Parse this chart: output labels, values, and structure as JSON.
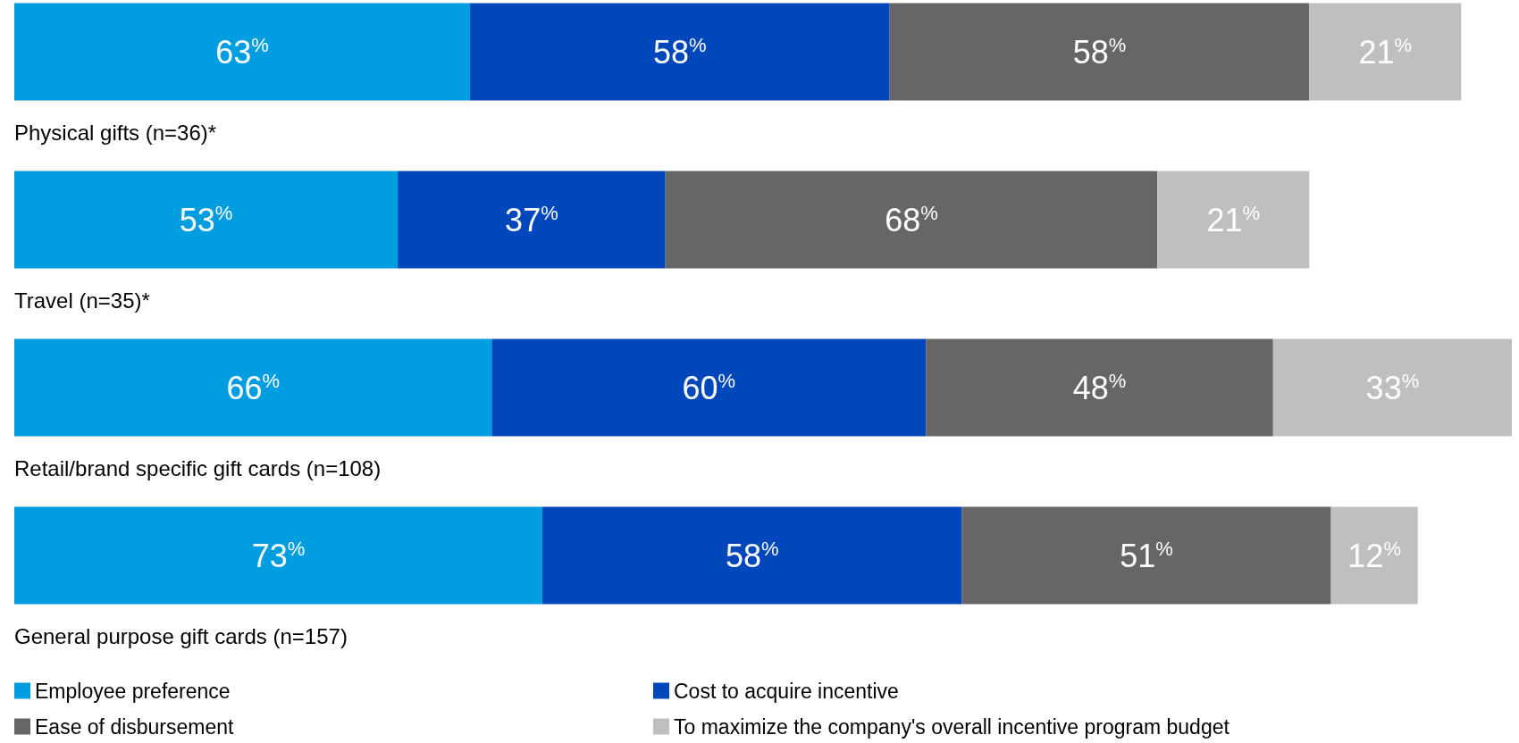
{
  "chart_data": {
    "type": "bar",
    "orientation": "horizontal",
    "stacked": true,
    "categories": [
      "Physical gifts (n=36)*",
      "Travel (n=35)*",
      "Retail/brand specific gift cards (n=108)",
      "General purpose gift cards (n=157)"
    ],
    "series": [
      {
        "name": "Employee preference",
        "color": "#009ee0",
        "values": [
          63,
          53,
          66,
          73
        ],
        "value_labels": [
          "63$^{%}$",
          "53$^{%}$",
          "66$^{%}$",
          "73$^{%}$"
        ]
      },
      {
        "name": "Cost to acquire incentive",
        "color": "#0047bb",
        "values": [
          58,
          37,
          60,
          58
        ],
        "value_labels": [
          "58$^{%}$",
          "37$^{%}$",
          "60$^{%}$",
          "58$^{%}$"
        ]
      },
      {
        "name": "Ease of disbursement",
        "color": "#666666",
        "values": [
          58,
          68,
          48,
          51
        ],
        "value_labels": [
          "58$^{%}$",
          "68$^{%}$",
          "48$^{%}$",
          "51$^{%}$"
        ]
      },
      {
        "name": "To maximize the company's overall incentive program budget",
        "color": "#bfbfbf",
        "values": [
          21,
          21,
          33,
          12
        ],
        "value_labels": [
          "21$^{%}$",
          "21$^{%}$",
          "33$^{%}$",
          "12$^{%}$"
        ]
      }
    ],
    "legend": "bottom",
    "tick_labels": "y"
  }
}
